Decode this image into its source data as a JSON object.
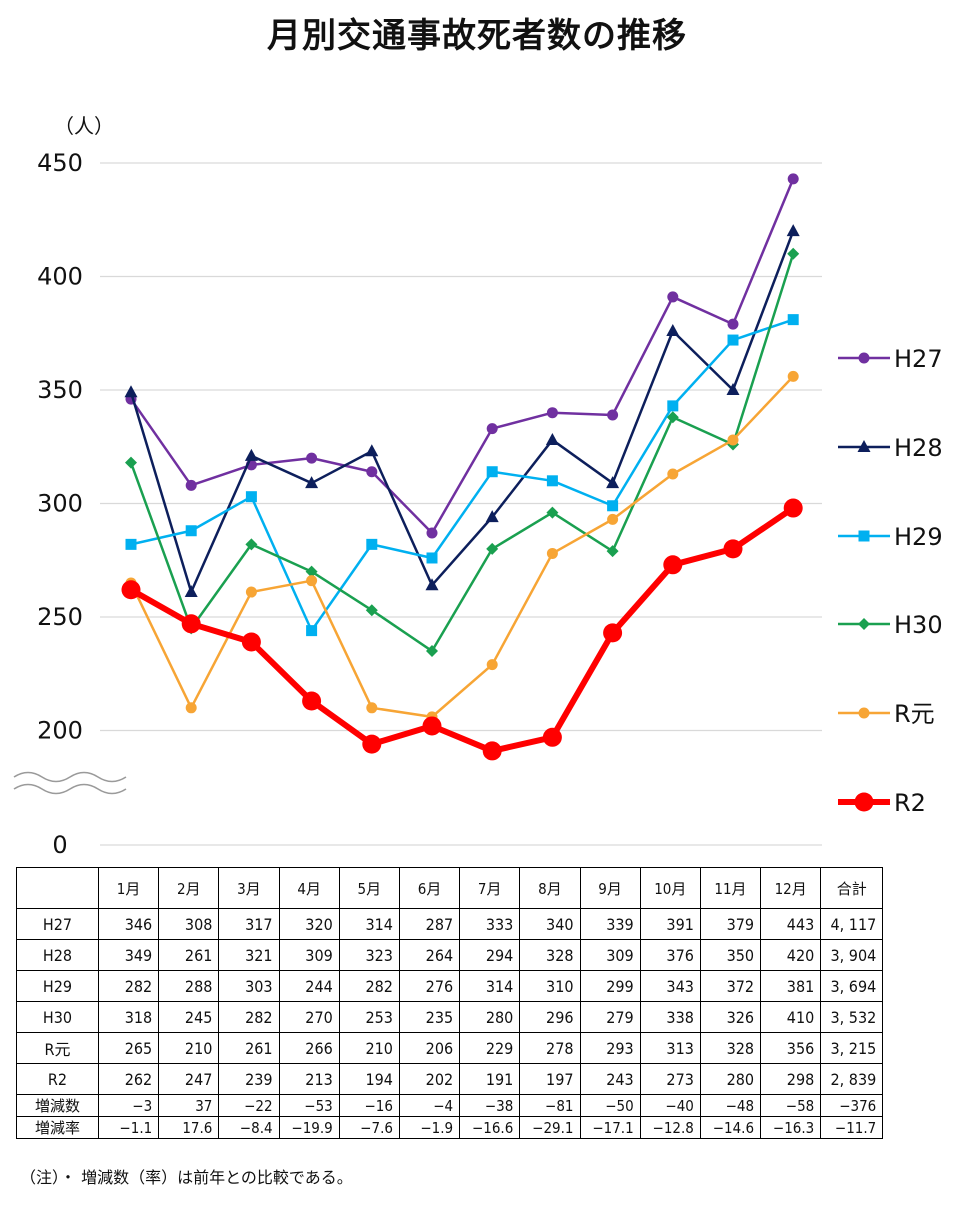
{
  "chart_data": {
    "type": "line",
    "title": "月別交通事故死者数の推移",
    "ylabel": "（人）",
    "ylim": [
      0,
      450
    ],
    "yticks": [
      0,
      200,
      250,
      300,
      350,
      400,
      450
    ],
    "axis_break": true,
    "grid": true,
    "legend_position": "right",
    "categories": [
      "1月",
      "2月",
      "3月",
      "4月",
      "5月",
      "6月",
      "7月",
      "8月",
      "9月",
      "10月",
      "11月",
      "12月"
    ],
    "series": [
      {
        "name": "H27",
        "color": "#7030a0",
        "marker": "circle",
        "values": [
          346,
          308,
          317,
          320,
          314,
          287,
          333,
          340,
          339,
          391,
          379,
          443
        ]
      },
      {
        "name": "H28",
        "color": "#0d1f5c",
        "marker": "triangle",
        "values": [
          349,
          261,
          321,
          309,
          323,
          264,
          294,
          328,
          309,
          376,
          350,
          420
        ]
      },
      {
        "name": "H29",
        "color": "#00b0f0",
        "marker": "square",
        "values": [
          282,
          288,
          303,
          244,
          282,
          276,
          314,
          310,
          299,
          343,
          372,
          381
        ]
      },
      {
        "name": "H30",
        "color": "#1aa050",
        "marker": "diamond",
        "values": [
          318,
          245,
          282,
          270,
          253,
          235,
          280,
          296,
          279,
          338,
          326,
          410
        ]
      },
      {
        "name": "R元",
        "color": "#f7a535",
        "marker": "circle",
        "values": [
          265,
          210,
          261,
          266,
          210,
          206,
          229,
          278,
          293,
          313,
          328,
          356
        ]
      },
      {
        "name": "R2",
        "color": "#ff0000",
        "marker": "circle-large",
        "values": [
          262,
          247,
          239,
          213,
          194,
          202,
          191,
          197,
          243,
          273,
          280,
          298
        ]
      }
    ]
  },
  "table": {
    "headers": [
      "1月",
      "2月",
      "3月",
      "4月",
      "5月",
      "6月",
      "7月",
      "8月",
      "9月",
      "10月",
      "11月",
      "12月",
      "合計"
    ],
    "rows": [
      {
        "label": "H27",
        "cells": [
          "346",
          "308",
          "317",
          "320",
          "314",
          "287",
          "333",
          "340",
          "339",
          "391",
          "379",
          "443",
          "4, 117"
        ]
      },
      {
        "label": "H28",
        "cells": [
          "349",
          "261",
          "321",
          "309",
          "323",
          "264",
          "294",
          "328",
          "309",
          "376",
          "350",
          "420",
          "3, 904"
        ]
      },
      {
        "label": "H29",
        "cells": [
          "282",
          "288",
          "303",
          "244",
          "282",
          "276",
          "314",
          "310",
          "299",
          "343",
          "372",
          "381",
          "3, 694"
        ]
      },
      {
        "label": "H30",
        "cells": [
          "318",
          "245",
          "282",
          "270",
          "253",
          "235",
          "280",
          "296",
          "279",
          "338",
          "326",
          "410",
          "3, 532"
        ]
      },
      {
        "label": "R元",
        "cells": [
          "265",
          "210",
          "261",
          "266",
          "210",
          "206",
          "229",
          "278",
          "293",
          "313",
          "328",
          "356",
          "3, 215"
        ]
      },
      {
        "label": "R2",
        "cells": [
          "262",
          "247",
          "239",
          "213",
          "194",
          "202",
          "191",
          "197",
          "243",
          "273",
          "280",
          "298",
          "2, 839"
        ]
      }
    ],
    "diff_rows": [
      {
        "label": "増減数",
        "cells": [
          "−3",
          "37",
          "−22",
          "−53",
          "−16",
          "−4",
          "−38",
          "−81",
          "−50",
          "−40",
          "−48",
          "−58",
          "−376"
        ]
      },
      {
        "label": "増減率",
        "cells": [
          "−1.1",
          "17.6",
          "−8.4",
          "−19.9",
          "−7.6",
          "−1.9",
          "−16.6",
          "−29.1",
          "−17.1",
          "−12.8",
          "−14.6",
          "−16.3",
          "−11.7"
        ]
      }
    ]
  },
  "footnote": "（注）・ 増減数（率）は前年との比較である。"
}
